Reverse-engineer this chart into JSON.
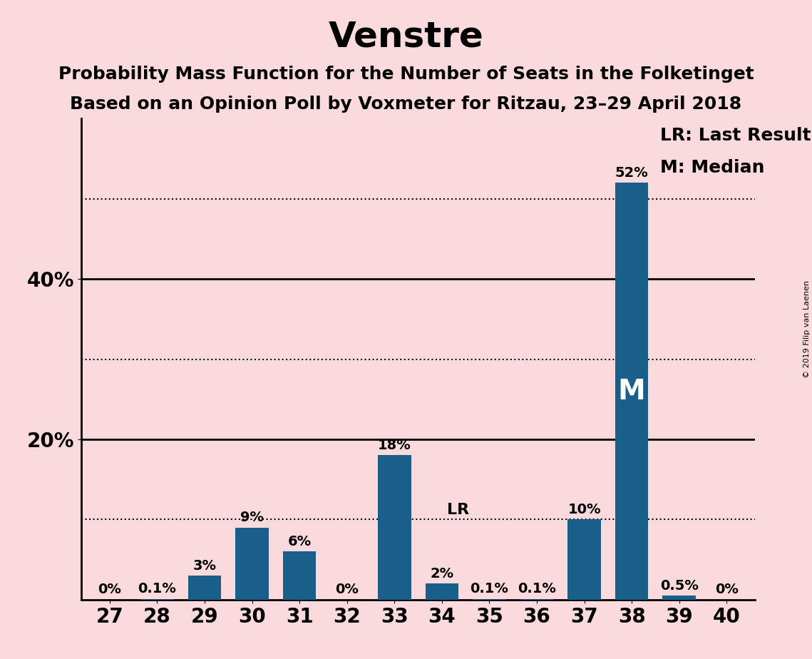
{
  "title": "Venstre",
  "subtitle1": "Probability Mass Function for the Number of Seats in the Folketinget",
  "subtitle2": "Based on an Opinion Poll by Voxmeter for Ritzau, 23–29 April 2018",
  "copyright": "© 2019 Filip van Laenen",
  "categories": [
    27,
    28,
    29,
    30,
    31,
    32,
    33,
    34,
    35,
    36,
    37,
    38,
    39,
    40
  ],
  "values": [
    0.0,
    0.1,
    3.0,
    9.0,
    6.0,
    0.0,
    18.0,
    2.0,
    0.1,
    0.1,
    10.0,
    52.0,
    0.5,
    0.0
  ],
  "labels": [
    "0%",
    "0.1%",
    "3%",
    "9%",
    "6%",
    "0%",
    "18%",
    "2%",
    "0.1%",
    "0.1%",
    "10%",
    "52%",
    "0.5%",
    "0%"
  ],
  "bar_color": "#1a5f8a",
  "background_color": "#fadadd",
  "median_bar": 38,
  "last_result_bar": 34,
  "ylim": [
    0,
    60
  ],
  "solid_yticks": [
    20,
    40
  ],
  "dotted_yticks": [
    10,
    30,
    50
  ],
  "legend_lr": "LR: Last Result",
  "legend_m": "M: Median",
  "m_label_fontsize": 28,
  "title_fontsize": 36,
  "subtitle_fontsize": 18,
  "label_fontsize": 14,
  "tick_fontsize": 20,
  "legend_fontsize": 18
}
